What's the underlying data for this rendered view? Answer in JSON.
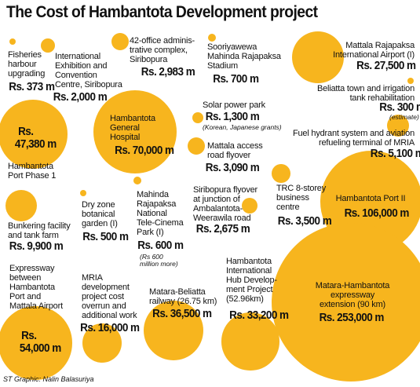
{
  "title": "The Cost of Hambantota Development project",
  "credit": "ST Graphic: Nalin Balasuriya",
  "colors": {
    "bubble": "#f7b51e",
    "text": "#111111",
    "background": "#ffffff"
  },
  "chart_data": {
    "type": "bubble",
    "title": "The Cost of Hambantota Development project",
    "unit": "Rs. million",
    "items": [
      {
        "name": "Fisheries harbour upgrading",
        "label": "Rs. 373 m",
        "value": 373
      },
      {
        "name": "International Exhibition and Convention Centre, Siribopura",
        "label": "Rs. 2,000 m",
        "value": 2000
      },
      {
        "name": "42-office administrative complex, Siribopura",
        "label": "Rs. 2,983 m",
        "value": 2983
      },
      {
        "name": "Sooriyawewa Mahinda Rajapaksa Stadium",
        "label": "Rs. 700 m",
        "value": 700
      },
      {
        "name": "Mattala Rajapaksa International Airport (I)",
        "label": "Rs. 27,500 m",
        "value": 27500
      },
      {
        "name": "Beliatta town and irrigation tank rehabilitation",
        "label": "Rs. 300 m",
        "value": 300,
        "note": "(estimate)"
      },
      {
        "name": "Hambantota Port Phase 1",
        "label": "Rs. 47,380 m",
        "value": 47380
      },
      {
        "name": "Hambantota General Hospital",
        "label": "Rs. 70,000 m",
        "value": 70000
      },
      {
        "name": "Solar power park",
        "label": "Rs. 1,300 m",
        "value": 1300,
        "note": "(Korean, Japanese grants)"
      },
      {
        "name": "Mattala access road flyover",
        "label": "Rs. 3,090 m",
        "value": 3090
      },
      {
        "name": "Fuel hydrant system and aviation refueling terminal of MRIA",
        "label": "Rs. 5,100 m",
        "value": 5100
      },
      {
        "name": "Bunkering facility and tank farm",
        "label": "Rs. 9,900 m",
        "value": 9900
      },
      {
        "name": "Dry zone botanical garden (I)",
        "label": "Rs. 500 m",
        "value": 500
      },
      {
        "name": "Mahinda Rajapaksa National Tele-Cinema Park (I)",
        "label": "Rs. 600 m",
        "value": 600,
        "note": "(Rs 600 million more)"
      },
      {
        "name": "Siribopura flyover at junction of Ambalantota-Weerawila road",
        "label": "Rs. 2,675 m",
        "value": 2675
      },
      {
        "name": "TRC 8-storey business centre",
        "label": "Rs. 3,500 m",
        "value": 3500
      },
      {
        "name": "Hambantota Port II",
        "label": "Rs. 106,000 m",
        "value": 106000
      },
      {
        "name": "Expressway between Hambantota Port and Mattala Airport",
        "label": "Rs. 54,000 m",
        "value": 54000
      },
      {
        "name": "MRIA development project cost overrun and additional work",
        "label": "Rs. 16,000 m",
        "value": 16000
      },
      {
        "name": "Matara-Beliatta railway (26.75 km)",
        "label": "Rs. 36,500 m",
        "value": 36500
      },
      {
        "name": "Hambantota International Hub Development Project (52.96km)",
        "label": "Rs. 33,200 m",
        "value": 33200
      },
      {
        "name": "Matara-Hambantota expressway extension (90 km)",
        "label": "Rs. 253,000 m",
        "value": 253000
      }
    ]
  },
  "labels": {
    "fisheries": "Fisheries\nharbour\nupgrading",
    "exhibition": "International\nExhibition and\nConvention\nCentre, Siribopura",
    "admin": "42-office adminis-\ntrative complex,\nSiribopura",
    "stadium": "Sooriyawewa\nMahinda Rajapaksa\nStadium",
    "airport": "Mattala Rajapaksa\nInternational Airport (I)",
    "beliatta": "Beliatta town and irrigation\ntank rehabilitation",
    "beliatta_note": "(estimate)",
    "port1_amount_a": "Rs.",
    "port1_amount_b": "47,380 m",
    "port1": "Hambantota\nPort Phase 1",
    "hospital": "Hambantota\nGeneral\nHospital",
    "solar": "Solar power park",
    "solar_note": "(Korean, Japanese grants)",
    "flyover": "Mattala access\nroad flyover",
    "fuel": "Fuel hydrant system and aviation\nrefueling terminal of MRIA",
    "bunkering": "Bunkering facility\nand tank farm",
    "botanical": "Dry zone\nbotanical\ngarden (I)",
    "telecinema": "Mahinda\nRajapaksa\nNational\nTele-Cinema\nPark (I)",
    "telecinema_note": "(Rs 600\nmillion more)",
    "siribopura_flyover": "Siribopura flyover\nat junction of\nAmbalantota-\nWeerawila road",
    "trc": "TRC 8-storey\nbusiness\ncentre",
    "port2": "Hambantota Port II",
    "expressway_mattala": "Expressway\nbetween\nHambantota\nPort and\nMattala Airport",
    "expressway_amount_a": "Rs.",
    "expressway_amount_b": "54,000 m",
    "overrun": "MRIA\ndevelopment\nproject cost\noverrun and\nadditional work",
    "railway": "Matara-Beliatta\nrailway (26.75 km)",
    "hub": "Hambantota\nInternational\nHub Develop-\nment Project\n(52.96km)",
    "expressway_ext": "Matara-Hambantota\nexpressway\nextension (90 km)"
  }
}
